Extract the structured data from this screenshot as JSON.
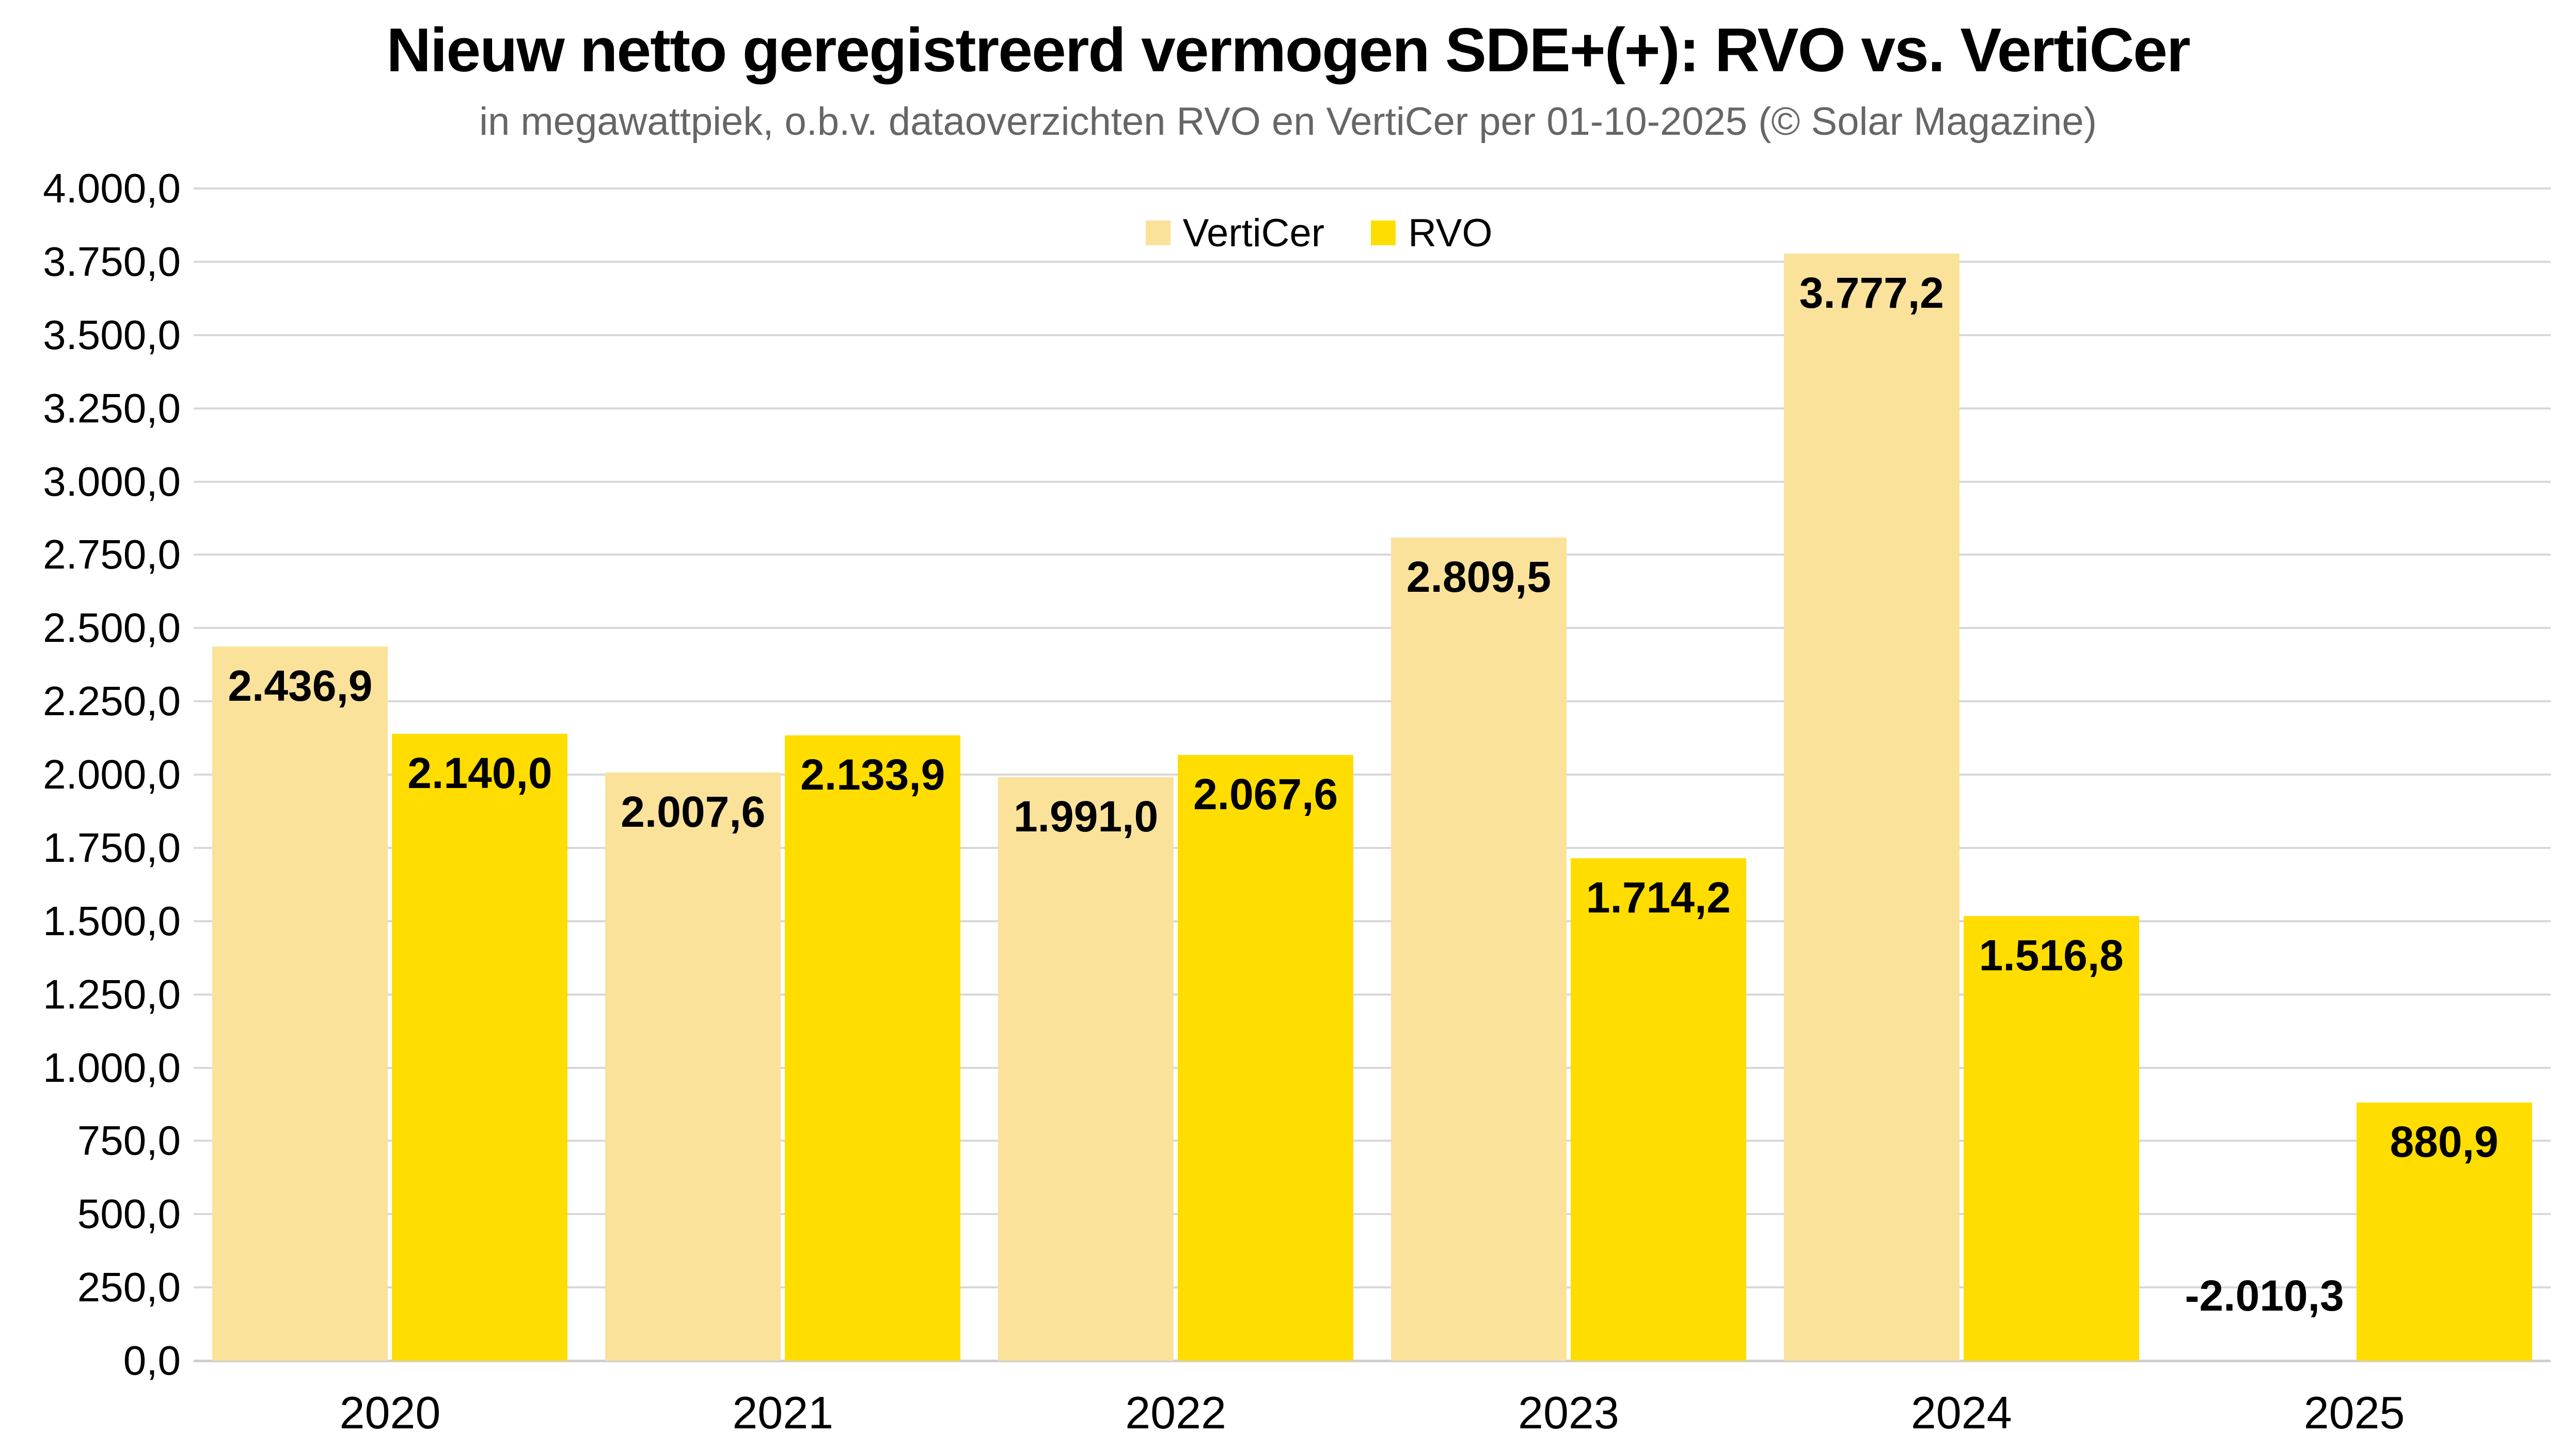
{
  "chart_data": {
    "type": "bar",
    "title": "Nieuw netto geregistreerd vermogen SDE+(+): RVO vs. VertiCer",
    "subtitle": "in megawattpiek, o.b.v. dataoverzichten RVO en VertiCer per 01-10-2025 (© Solar Magazine)",
    "categories": [
      "2020",
      "2021",
      "2022",
      "2023",
      "2024",
      "2025"
    ],
    "series": [
      {
        "name": "VertiCer",
        "color": "#FAE29B",
        "values": [
          2436.9,
          2007.6,
          1991.0,
          2809.5,
          3777.2,
          -2010.3
        ],
        "labels": [
          "2.436,9",
          "2.007,6",
          "1.991,0",
          "2.809,5",
          "3.777,2",
          "-2.010,3"
        ]
      },
      {
        "name": "RVO",
        "color": "#FFDD00",
        "values": [
          2140.0,
          2133.9,
          2067.6,
          1714.2,
          1516.8,
          880.9
        ],
        "labels": [
          "2.140,0",
          "2.133,9",
          "2.067,6",
          "1.714,2",
          "1.516,8",
          "880,9"
        ]
      }
    ],
    "y_axis": {
      "min": 0,
      "max": 4000,
      "step": 250,
      "tick_labels": [
        "0,0",
        "250,0",
        "500,0",
        "750,0",
        "1.000,0",
        "1.250,0",
        "1.500,0",
        "1.750,0",
        "2.000,0",
        "2.250,0",
        "2.500,0",
        "2.750,0",
        "3.000,0",
        "3.250,0",
        "3.500,0",
        "3.750,0",
        "4.000,0"
      ]
    },
    "grid": true,
    "legend_position": "top-center",
    "colors": {
      "background": "#FFFFFF",
      "gridline": "#D8D8D8",
      "zero_line": "#CFCFCF",
      "title_text": "#000000",
      "subtitle_text": "#666666",
      "label_text": "#000000"
    }
  }
}
